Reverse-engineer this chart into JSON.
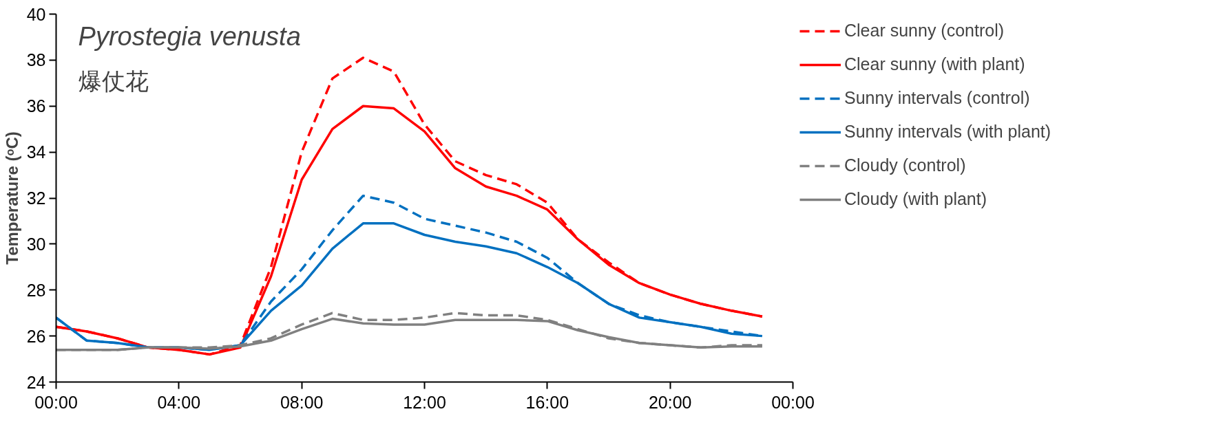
{
  "chart_data": {
    "type": "line",
    "title": "Pyrostegia venusta",
    "subtitle": "爆仗花",
    "ylabel": "Temperature (ᵒC)",
    "x": [
      0,
      1,
      2,
      3,
      4,
      5,
      6,
      7,
      8,
      9,
      10,
      11,
      12,
      13,
      14,
      15,
      16,
      17,
      18,
      19,
      20,
      21,
      22,
      23
    ],
    "xlim": [
      0,
      24
    ],
    "ylim": [
      24,
      40
    ],
    "yticks": [
      24,
      26,
      28,
      30,
      32,
      34,
      36,
      38,
      40
    ],
    "xticks": [
      {
        "value": 0,
        "label": "00:00"
      },
      {
        "value": 4,
        "label": "04:00"
      },
      {
        "value": 8,
        "label": "08:00"
      },
      {
        "value": 12,
        "label": "12:00"
      },
      {
        "value": 16,
        "label": "16:00"
      },
      {
        "value": 20,
        "label": "20:00"
      },
      {
        "value": 24,
        "label": "00:00"
      }
    ],
    "grid": false,
    "legend": "right",
    "marker": "none",
    "series": [
      {
        "name": "Clear sunny (control)",
        "color": "#ff0000",
        "line_style": "dashed",
        "values": [
          26.4,
          26.2,
          25.9,
          25.5,
          25.4,
          25.2,
          25.6,
          29,
          34,
          37.2,
          38.1,
          37.5,
          35.2,
          33.6,
          33.0,
          32.6,
          31.8,
          30.2,
          29.2,
          28.3,
          27.8,
          27.4,
          27.1,
          26.85
        ]
      },
      {
        "name": "Clear sunny (with plant)",
        "color": "#ff0000",
        "line_style": "solid",
        "values": [
          26.4,
          26.2,
          25.9,
          25.5,
          25.4,
          25.2,
          25.5,
          28.6,
          32.8,
          35,
          36,
          35.9,
          34.9,
          33.3,
          32.5,
          32.1,
          31.5,
          30.2,
          29.1,
          28.3,
          27.8,
          27.4,
          27.1,
          26.85
        ]
      },
      {
        "name": "Sunny intervals (control)",
        "color": "#0070c0",
        "line_style": "dashed",
        "values": [
          26.8,
          25.8,
          25.7,
          25.5,
          25.5,
          25.4,
          25.6,
          27.5,
          28.9,
          30.6,
          32.1,
          31.8,
          31.1,
          30.8,
          30.5,
          30.1,
          29.4,
          28.3,
          27.4,
          26.9,
          26.6,
          26.4,
          26.2,
          26.0
        ]
      },
      {
        "name": "Sunny intervals (with plant)",
        "color": "#0070c0",
        "line_style": "solid",
        "values": [
          26.8,
          25.8,
          25.7,
          25.5,
          25.5,
          25.4,
          25.6,
          27.1,
          28.2,
          29.8,
          30.9,
          30.9,
          30.4,
          30.1,
          29.9,
          29.6,
          29.0,
          28.3,
          27.4,
          26.8,
          26.6,
          26.4,
          26.1,
          26.0
        ]
      },
      {
        "name": "Cloudy (control)",
        "color": "#808080",
        "line_style": "dashed",
        "values": [
          25.4,
          25.4,
          25.4,
          25.5,
          25.5,
          25.5,
          25.6,
          25.9,
          26.5,
          27.0,
          26.7,
          26.7,
          26.8,
          27.0,
          26.9,
          26.9,
          26.7,
          26.3,
          25.9,
          25.7,
          25.6,
          25.5,
          25.6,
          25.6
        ]
      },
      {
        "name": "Cloudy (with plant)",
        "color": "#808080",
        "line_style": "solid",
        "values": [
          25.4,
          25.4,
          25.4,
          25.5,
          25.5,
          25.45,
          25.55,
          25.8,
          26.3,
          26.75,
          26.55,
          26.5,
          26.5,
          26.7,
          26.7,
          26.7,
          26.65,
          26.25,
          25.95,
          25.7,
          25.6,
          25.5,
          25.55,
          25.55
        ]
      }
    ]
  }
}
